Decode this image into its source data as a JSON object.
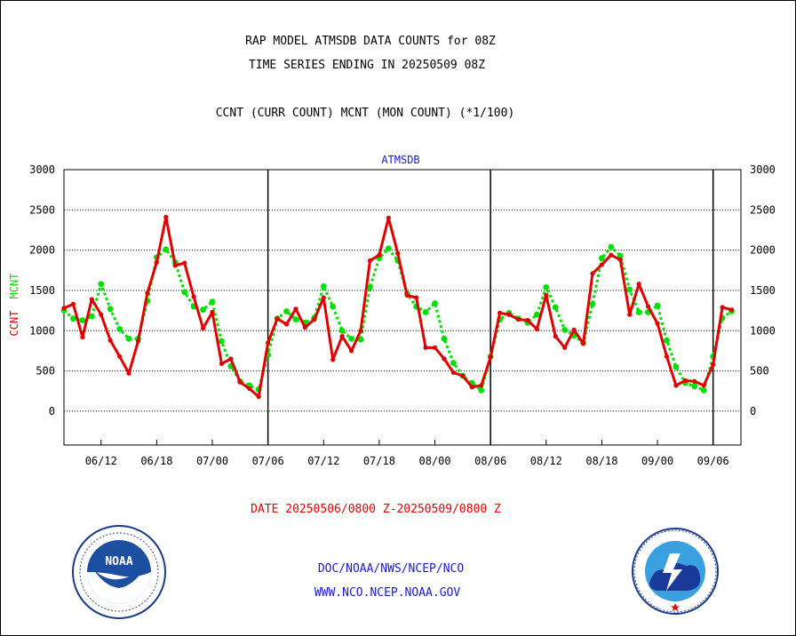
{
  "header": {
    "title_line1": "RAP MODEL ATMSDB DATA COUNTS for 08Z",
    "title_line2": "TIME SERIES ENDING IN 20250509 08Z",
    "subtitle": "CCNT (CURR COUNT) MCNT (MON COUNT) (*1/100)"
  },
  "footer": {
    "date_range": "DATE 20250506/0800 Z-20250509/0800 Z",
    "org_line": "DOC/NOAA/NWS/NCEP/NCO",
    "url_line": "WWW.NCO.NCEP.NOAA.GOV"
  },
  "logos": {
    "left": "NOAA",
    "left_ring": "NATIONAL OCEANIC AND ATMOSPHERIC ADMINISTRATION · U.S. DEPARTMENT OF COMMERCE",
    "right_ring": "NATIONAL WEATHER SERVICE"
  },
  "colors": {
    "ccnt": "#e00000",
    "mcnt": "#00e000",
    "text_blue": "#1a1ad0",
    "text_red": "#e00000"
  },
  "chart_data": {
    "type": "line",
    "title": "ATMSDB",
    "ylabel_parts": [
      {
        "text": "CCNT",
        "color": "#e00000"
      },
      {
        "text": "MCNT",
        "color": "#00e000"
      }
    ],
    "ylim": [
      -420,
      3000
    ],
    "yticks": [
      0,
      500,
      1000,
      1500,
      2000,
      2500,
      3000
    ],
    "ytick_labels": [
      "0",
      "500",
      "1000",
      "1500",
      "2000",
      "2500",
      "3000"
    ],
    "x_index_range": [
      0,
      73
    ],
    "xticks": [
      {
        "i": 4,
        "label": "06/12"
      },
      {
        "i": 10,
        "label": "06/18"
      },
      {
        "i": 16,
        "label": "07/00"
      },
      {
        "i": 22,
        "label": "07/06"
      },
      {
        "i": 28,
        "label": "07/12"
      },
      {
        "i": 34,
        "label": "07/18"
      },
      {
        "i": 40,
        "label": "08/00"
      },
      {
        "i": 46,
        "label": "08/06"
      },
      {
        "i": 52,
        "label": "08/12"
      },
      {
        "i": 58,
        "label": "08/18"
      },
      {
        "i": 64,
        "label": "09/00"
      },
      {
        "i": 70,
        "label": "09/06"
      }
    ],
    "day_separators": [
      22,
      46,
      70
    ],
    "grid": true,
    "series": [
      {
        "name": "CCNT",
        "color": "#e00000",
        "style": "solid",
        "values": [
          1280,
          1330,
          920,
          1390,
          1200,
          880,
          680,
          470,
          870,
          1470,
          1850,
          2410,
          1810,
          1840,
          1420,
          1030,
          1230,
          590,
          650,
          360,
          280,
          180,
          850,
          1150,
          1080,
          1270,
          1040,
          1140,
          1410,
          640,
          930,
          750,
          1000,
          1870,
          1940,
          2400,
          1960,
          1440,
          1410,
          790,
          790,
          650,
          480,
          440,
          300,
          320,
          670,
          1220,
          1200,
          1140,
          1130,
          1020,
          1440,
          930,
          790,
          1010,
          840,
          1710,
          1820,
          1940,
          1880,
          1200,
          1580,
          1300,
          1090,
          680,
          320,
          380,
          370,
          320,
          580,
          1290,
          1260
        ]
      },
      {
        "name": "MCNT",
        "color": "#00e000",
        "style": "dotted",
        "values": [
          1250,
          1150,
          1130,
          1180,
          1580,
          1270,
          1020,
          900,
          900,
          1370,
          1910,
          2010,
          1850,
          1480,
          1300,
          1260,
          1360,
          870,
          560,
          370,
          320,
          270,
          700,
          1150,
          1240,
          1140,
          1100,
          1160,
          1550,
          1300,
          1000,
          900,
          890,
          1540,
          1900,
          2020,
          1870,
          1460,
          1300,
          1230,
          1340,
          900,
          600,
          440,
          350,
          260,
          680,
          1140,
          1220,
          1150,
          1100,
          1200,
          1540,
          1290,
          1010,
          940,
          850,
          1330,
          1900,
          2040,
          1930,
          1510,
          1230,
          1230,
          1310,
          880,
          550,
          350,
          310,
          260,
          680,
          1160,
          1240
        ]
      }
    ]
  }
}
